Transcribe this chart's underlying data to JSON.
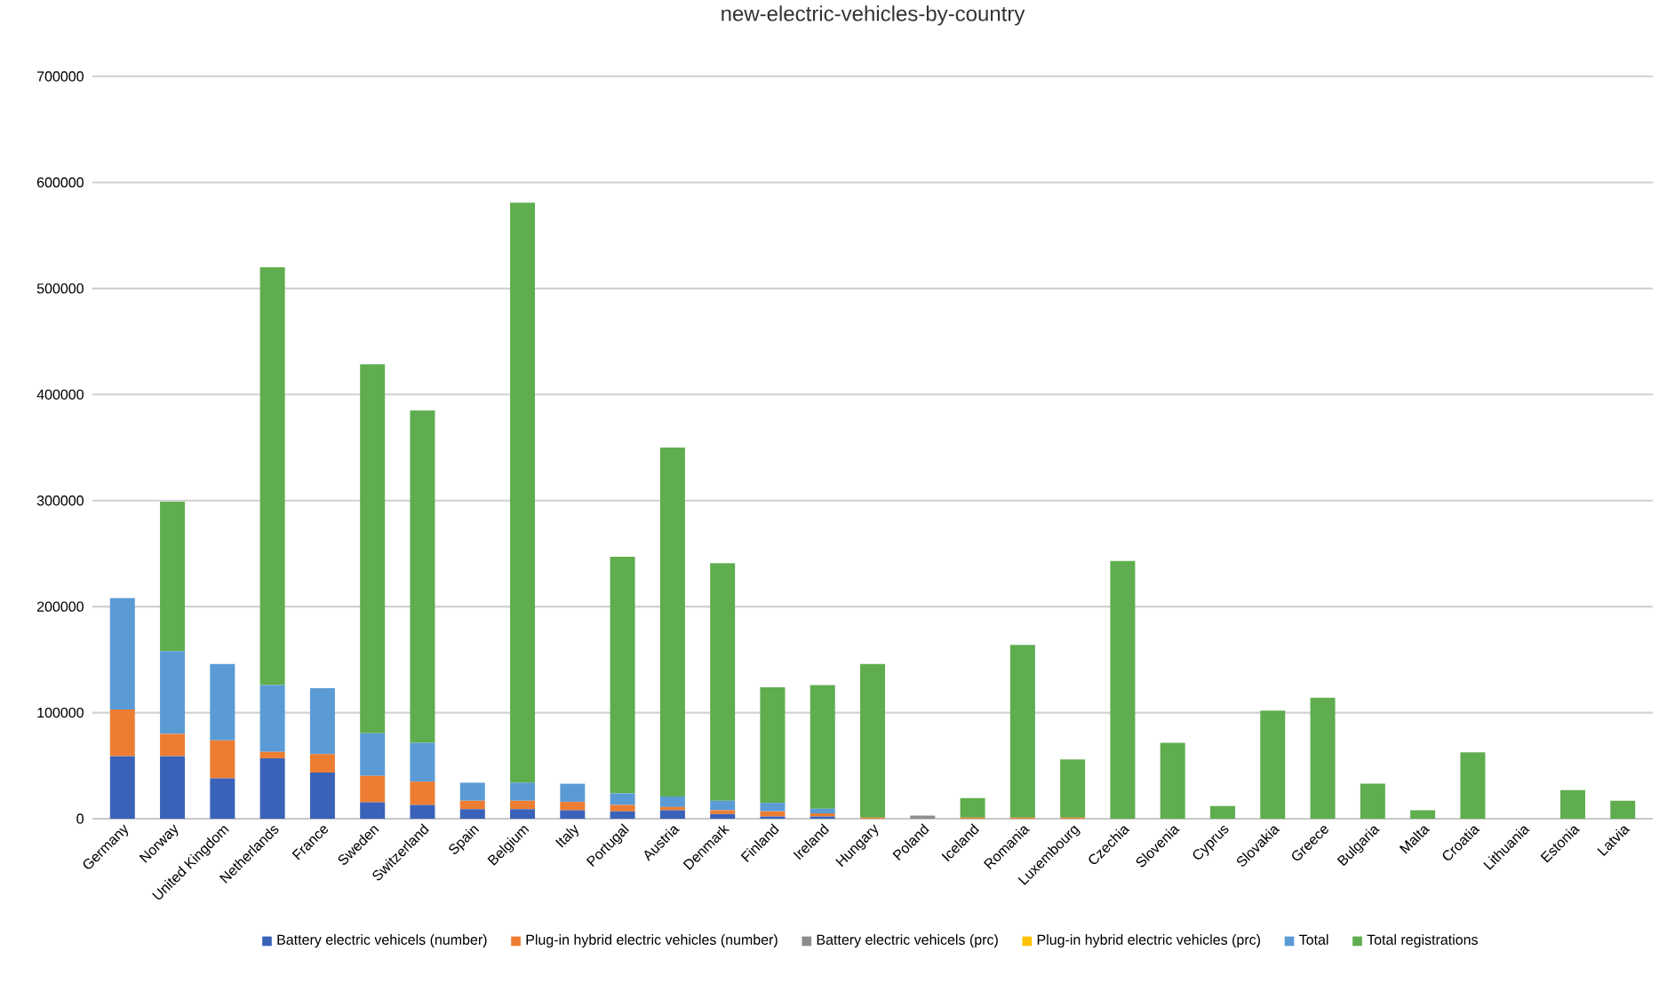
{
  "chart_data": {
    "type": "bar",
    "title": "new-electric-vehicles-by-country",
    "stacked": true,
    "grid": "y",
    "legend": "bottom",
    "categories": [
      "Germany",
      "Norway",
      "United Kingdom",
      "Netherlands",
      "France",
      "Sweden",
      "Switzerland",
      "Spain",
      "Belgium",
      "Italy",
      "Portugal",
      "Austria",
      "Denmark",
      "Finland",
      "Ireland",
      "Hungary",
      "Poland",
      "Iceland",
      "Romania",
      "Luxembourg",
      "Czechia",
      "Slovenia",
      "Cyprus",
      "Slovakia",
      "Greece",
      "Bulgaria",
      "Malta",
      "Croatia",
      "Lithuania",
      "Estonia",
      "Latvia"
    ],
    "ylim": [
      0,
      700000
    ],
    "yticks": [
      0,
      100000,
      200000,
      300000,
      400000,
      500000,
      600000,
      700000
    ],
    "series": [
      {
        "name": "Battery electric vehicels (number)",
        "color": "#3a62b8",
        "values": [
          59000,
          59000,
          38000,
          57000,
          43500,
          15500,
          13000,
          9000,
          9000,
          8000,
          7000,
          8000,
          4500,
          2000,
          2000,
          0,
          0,
          0,
          0,
          0,
          0,
          0,
          0,
          0,
          0,
          0,
          0,
          0,
          0,
          0,
          0
        ]
      },
      {
        "name": "Plug-in hybrid electric vehicles (number)",
        "color": "#ed7d31",
        "values": [
          44000,
          21000,
          36000,
          6000,
          17500,
          25000,
          22000,
          8000,
          8000,
          8000,
          6000,
          3000,
          3500,
          5000,
          3000,
          1000,
          0,
          1000,
          1000,
          1000,
          0,
          0,
          0,
          0,
          0,
          0,
          0,
          0,
          0,
          0,
          0
        ]
      },
      {
        "name": "Battery electric vehicels (prc)",
        "color": "#8c8c8c",
        "values": [
          0,
          0,
          0,
          0,
          0,
          0,
          0,
          0,
          0,
          0,
          0,
          0,
          0,
          0,
          0,
          0,
          3000,
          0,
          0,
          0,
          0,
          0,
          0,
          0,
          0,
          0,
          0,
          0,
          0,
          0,
          0
        ]
      },
      {
        "name": "Plug-in hybrid electric vehicles (prc)",
        "color": "#ffc000",
        "values": [
          0,
          0,
          0,
          0,
          0,
          0,
          0,
          0,
          0,
          0,
          0,
          0,
          0,
          0,
          0,
          0,
          0,
          0,
          0,
          0,
          0,
          0,
          0,
          0,
          0,
          0,
          0,
          0,
          0,
          0,
          0
        ]
      },
      {
        "name": "Total",
        "color": "#5b9bd5",
        "values": [
          105000,
          78000,
          72000,
          63000,
          62000,
          40000,
          36500,
          17000,
          17000,
          17000,
          11000,
          10000,
          9000,
          8000,
          4500,
          0,
          0,
          0,
          0,
          0,
          0,
          0,
          0,
          0,
          0,
          0,
          0,
          0,
          0,
          0,
          0
        ]
      },
      {
        "name": "Total registrations",
        "color": "#5fad4e",
        "values": [
          0,
          141000,
          0,
          394000,
          0,
          348000,
          313500,
          0,
          547000,
          0,
          223000,
          329000,
          224000,
          109000,
          116500,
          145000,
          0,
          18500,
          163000,
          55000,
          243000,
          71500,
          12000,
          102000,
          114000,
          33000,
          8000,
          62500,
          0,
          27000,
          17000
        ]
      }
    ]
  }
}
